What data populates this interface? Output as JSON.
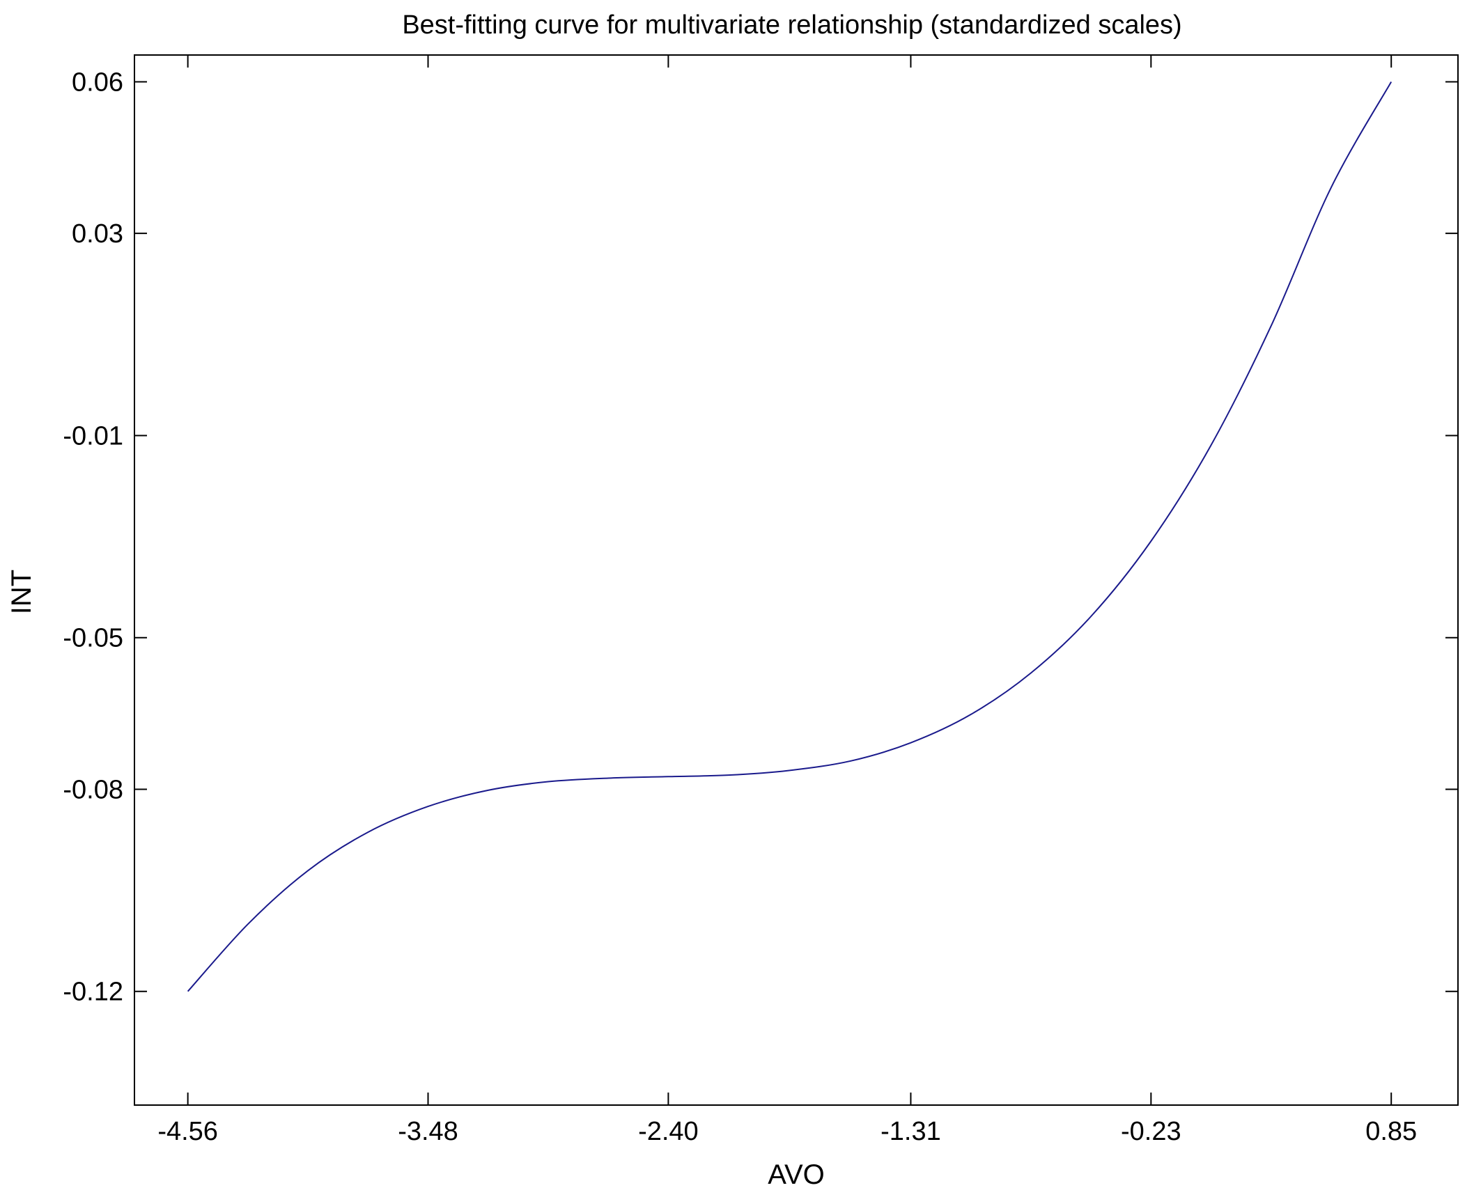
{
  "chart_data": {
    "type": "line",
    "title": "Best-fitting curve for multivariate relationship (standardized scales)",
    "xlabel": "AVO",
    "ylabel": "INT",
    "xlim": [
      -4.8,
      1.15
    ],
    "ylim": [
      -0.1425,
      0.0653
    ],
    "xticks": [
      -4.56,
      -3.48,
      -2.4,
      -1.31,
      -0.23,
      0.85
    ],
    "xtick_labels": [
      "-4.56",
      "-3.48",
      "-2.40",
      "-1.31",
      "-0.23",
      "0.85"
    ],
    "yticks": [
      -0.12,
      -0.08,
      -0.05,
      -0.01,
      0.03,
      0.06
    ],
    "ytick_labels": [
      "-0.12",
      "-0.08",
      "-0.05",
      "-0.01",
      "0.03",
      "0.06"
    ],
    "grid": false,
    "line_color": "#1a1a8c",
    "series": [
      {
        "x": [
          -4.56,
          -4.29,
          -4.02,
          -3.75,
          -3.48,
          -3.21,
          -2.94,
          -2.67,
          -2.4,
          -2.13,
          -1.86,
          -1.58,
          -1.31,
          -1.04,
          -0.77,
          -0.5,
          -0.23,
          0.04,
          0.31,
          0.58,
          0.85
        ],
        "y": [
          -0.12,
          -0.1067,
          -0.0961,
          -0.0885,
          -0.0834,
          -0.0802,
          -0.0785,
          -0.0778,
          -0.0775,
          -0.0772,
          -0.0763,
          -0.0744,
          -0.0708,
          -0.0652,
          -0.057,
          -0.0458,
          -0.0309,
          -0.0119,
          0.0117,
          0.0391,
          0.06
        ]
      }
    ]
  }
}
